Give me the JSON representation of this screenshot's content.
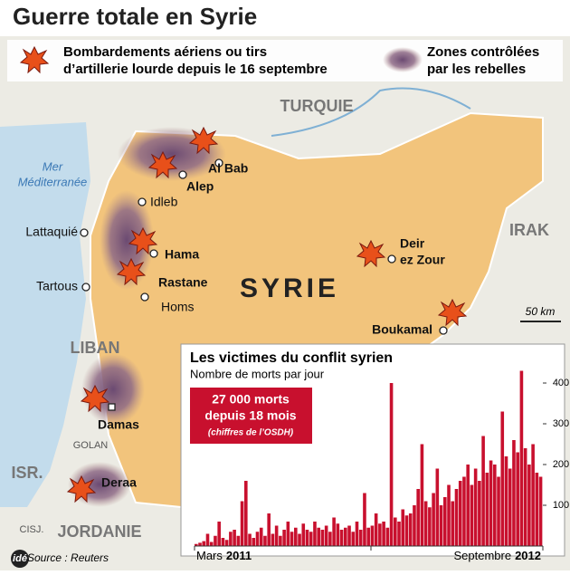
{
  "header": {
    "title": "Guerre totale en Syrie"
  },
  "legend": {
    "bombing": [
      "Bombardements aériens ou tirs",
      "d’artillerie lourde depuis le 16 septembre"
    ],
    "rebels": [
      "Zones contrôlées",
      "par les rebelles"
    ]
  },
  "map": {
    "countries": [
      "TURQUIE",
      "IRAK",
      "LIBAN",
      "ISR.",
      "JORDANIE",
      "SYRIE"
    ],
    "regions": [
      "GOLAN",
      "CISJ."
    ],
    "sea": [
      "Mer",
      "Méditerranée"
    ],
    "cities": [
      "Al Bab",
      "Alep",
      "Idleb",
      "Lattaquié",
      "Hama",
      "Rastane",
      "Homs",
      "Tartous",
      [
        "Deir",
        "ez Zour"
      ],
      "Boukamal",
      "Damas",
      "Deraa"
    ],
    "scale": "50 km"
  },
  "chart_data": {
    "type": "bar",
    "title": "Les victimes du conflit syrien",
    "subtitle": "Nombre de morts par jour",
    "annotation": [
      "27 000 morts",
      "depuis 18 mois",
      "(chiffres de l’OSDH)"
    ],
    "x_labels": [
      {
        "month": "Mars",
        "year": "2011"
      },
      {
        "month": "Septembre",
        "year": "2012"
      }
    ],
    "color": "#c8102e",
    "values": [
      5,
      8,
      12,
      30,
      10,
      25,
      60,
      20,
      15,
      35,
      40,
      25,
      110,
      160,
      30,
      20,
      35,
      45,
      25,
      80,
      30,
      50,
      25,
      40,
      60,
      35,
      45,
      30,
      55,
      40,
      35,
      60,
      45,
      40,
      50,
      35,
      70,
      55,
      40,
      45,
      50,
      35,
      60,
      40,
      130,
      45,
      50,
      80,
      55,
      60,
      45,
      400,
      70,
      60,
      90,
      75,
      80,
      100,
      140,
      250,
      110,
      95,
      130,
      190,
      100,
      120,
      150,
      110,
      140,
      160,
      170,
      200,
      150,
      190,
      160,
      270,
      180,
      210,
      200,
      170,
      330,
      220,
      190,
      260,
      230,
      430,
      240,
      200,
      250,
      180,
      170
    ],
    "ylim": [
      0,
      440
    ],
    "yticks": [
      100,
      200,
      300,
      400
    ],
    "grid": false
  },
  "footer": {
    "logo": "idé",
    "source": "Source : Reuters"
  }
}
